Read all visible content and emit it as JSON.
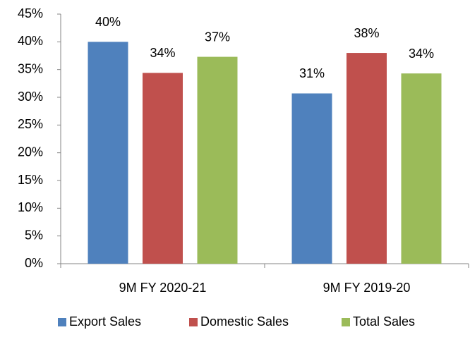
{
  "chart_data": {
    "type": "bar",
    "categories": [
      "9M FY 2020-21",
      "9M FY 2019-20"
    ],
    "series": [
      {
        "name": "Export Sales",
        "color": "#4f81bd",
        "values": [
          40,
          30.7
        ],
        "value_labels": [
          "40%",
          "31%"
        ]
      },
      {
        "name": "Domestic Sales",
        "color": "#c0504d",
        "values": [
          34.4,
          38
        ],
        "value_labels": [
          "34%",
          "38%"
        ]
      },
      {
        "name": "Total Sales",
        "color": "#9bbb59",
        "values": [
          37.3,
          34.3
        ],
        "value_labels": [
          "37%",
          "34%"
        ]
      }
    ],
    "ylim": [
      0,
      45
    ],
    "yticks": [
      {
        "value": 0,
        "label": "0%"
      },
      {
        "value": 5,
        "label": "5%"
      },
      {
        "value": 10,
        "label": "10%"
      },
      {
        "value": 15,
        "label": "15%"
      },
      {
        "value": 20,
        "label": "20%"
      },
      {
        "value": 25,
        "label": "25%"
      },
      {
        "value": 30,
        "label": "30%"
      },
      {
        "value": 35,
        "label": "35%"
      },
      {
        "value": 40,
        "label": "40%"
      },
      {
        "value": 45,
        "label": "45%"
      }
    ],
    "grid": false,
    "legend": "bottom"
  }
}
